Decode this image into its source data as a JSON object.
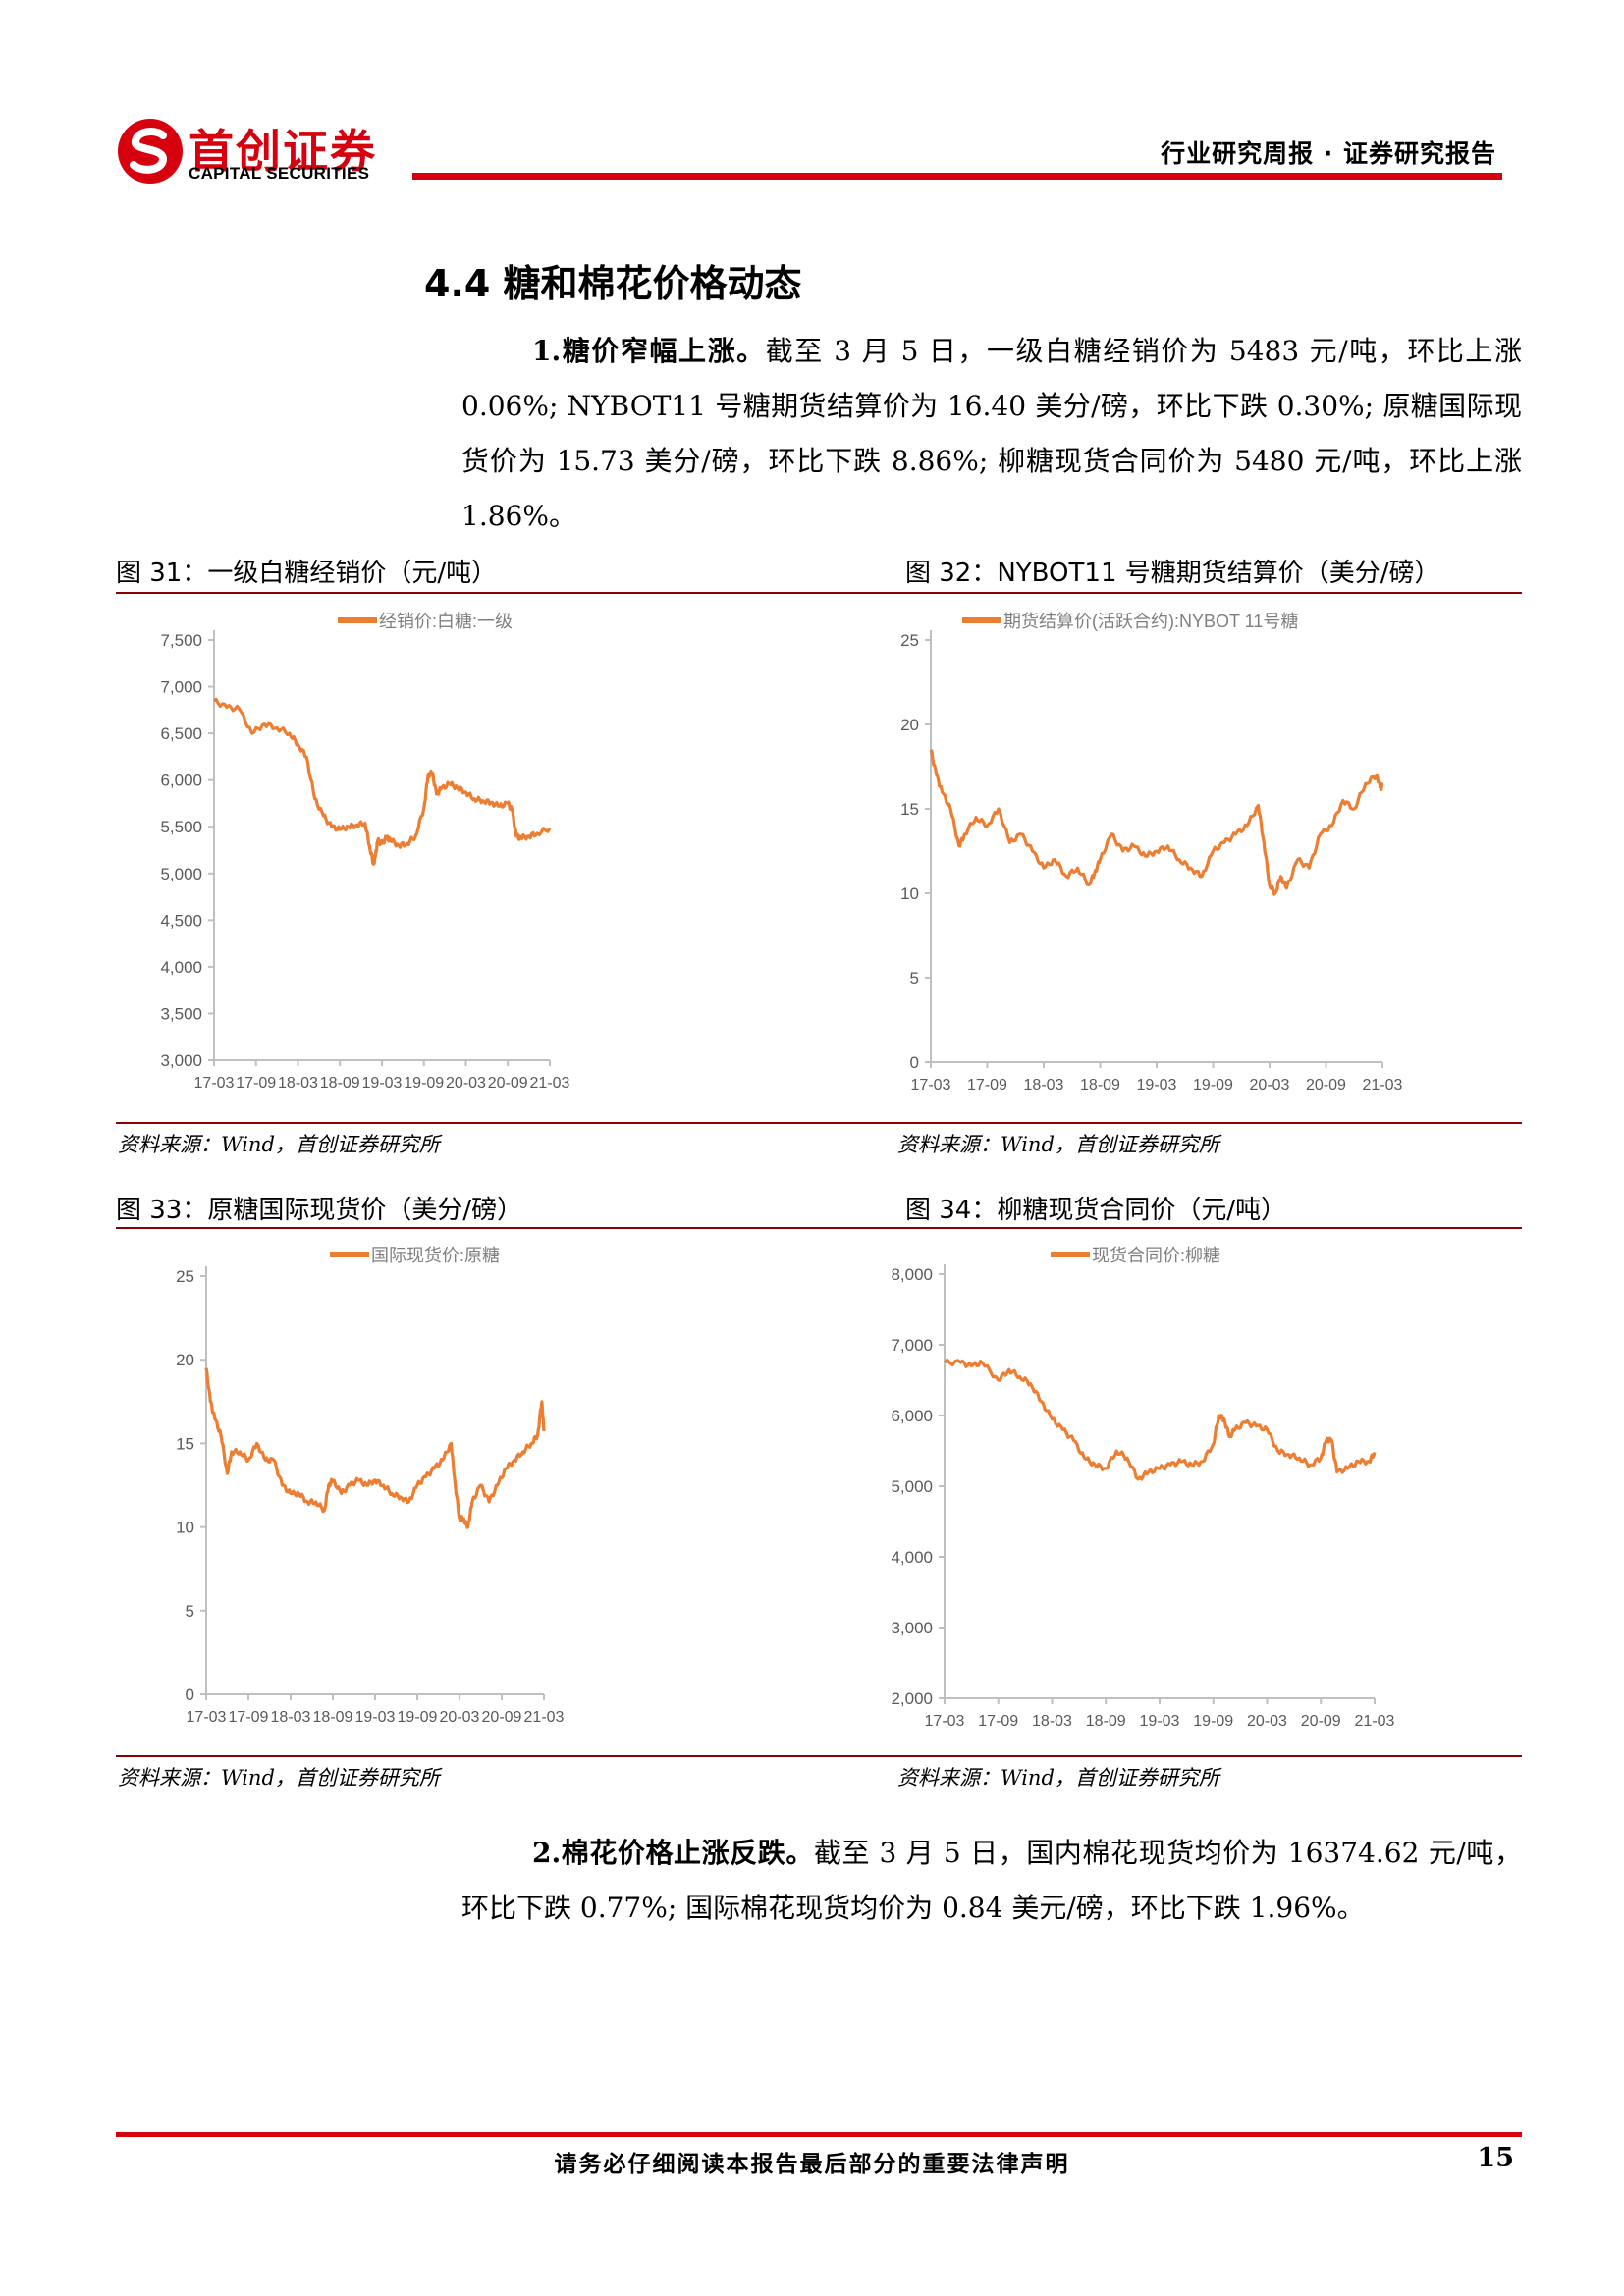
{
  "header": {
    "logo_cn": "首创证券",
    "logo_en": "CAPITAL SECURITIES",
    "report_type": "行业研究周报 · 证券研究报告"
  },
  "section": {
    "title": "4.4 糖和棉花价格动态",
    "para1_lead": "1.糖价窄幅上涨。",
    "para1_body": "截至 3 月 5 日，一级白糖经销价为 5483 元/吨，环比上涨 0.06%; NYBOT11 号糖期货结算价为 16.40 美分/磅，环比下跌 0.30%; 原糖国际现货价为 15.73 美分/磅，环比下跌 8.86%; 柳糖现货合同价为 5480 元/吨，环比上涨 1.86%。",
    "para2_lead": "2.棉花价格止涨反跌。",
    "para2_body": "截至 3 月 5 日，国内棉花现货均价为 16374.62 元/吨，环比下跌 0.77%; 国际棉花现货均价为 0.84 美元/磅，环比下跌 1.96%。"
  },
  "figures": [
    {
      "title": "图 31：一级白糖经销价（元/吨）",
      "source": "资料来源：Wind，首创证券研究所"
    },
    {
      "title": "图 32：NYBOT11 号糖期货结算价（美分/磅）",
      "source": "资料来源：Wind，首创证券研究所"
    },
    {
      "title": "图 33：原糖国际现货价（美分/磅）",
      "source": "资料来源：Wind，首创证券研究所"
    },
    {
      "title": "图 34：柳糖现货合同价（元/吨）",
      "source": "资料来源：Wind，首创证券研究所"
    }
  ],
  "chart_data": [
    {
      "type": "line",
      "legend": "经销价:白糖:一级",
      "color": "#ed7d31",
      "x_ticks": [
        "17-03",
        "17-09",
        "18-03",
        "18-09",
        "19-03",
        "19-09",
        "20-03",
        "20-09",
        "21-03"
      ],
      "y_ticks": [
        "7,500",
        "7,000",
        "6,500",
        "6,000",
        "5,500",
        "5,000",
        "4,500",
        "4,000",
        "3,500",
        "3,000"
      ],
      "ylim": [
        3000,
        7500
      ],
      "x": [
        0,
        0.3,
        0.6,
        0.9,
        1.2,
        1.5,
        1.8,
        2.0,
        2.2,
        2.4,
        2.6,
        2.8,
        3.0,
        3.2,
        3.4,
        3.6,
        3.7,
        3.8,
        3.85,
        3.9,
        4.0,
        4.1,
        4.2,
        4.4,
        4.6,
        4.8,
        5.0,
        5.1,
        5.2,
        5.3,
        5.4,
        5.6,
        5.8,
        6.0,
        6.2,
        6.4,
        6.6,
        6.8,
        7.0,
        7.1,
        7.2,
        7.3,
        7.5,
        7.7,
        8.0
      ],
      "values": [
        6850,
        6780,
        6760,
        6500,
        6600,
        6560,
        6500,
        6380,
        6250,
        5800,
        5620,
        5500,
        5470,
        5500,
        5520,
        5540,
        5300,
        5100,
        5200,
        5350,
        5320,
        5380,
        5360,
        5300,
        5320,
        5400,
        5700,
        6050,
        6080,
        5850,
        5900,
        5960,
        5920,
        5870,
        5800,
        5780,
        5760,
        5720,
        5750,
        5680,
        5400,
        5380,
        5400,
        5430,
        5483
      ]
    },
    {
      "type": "line",
      "legend": "期货结算价(活跃合约):NYBOT 11号糖",
      "color": "#ed7d31",
      "x_ticks": [
        "17-03",
        "17-09",
        "18-03",
        "18-09",
        "19-03",
        "19-09",
        "20-03",
        "20-09",
        "21-03"
      ],
      "y_ticks": [
        "25",
        "20",
        "15",
        "10",
        "5",
        "0"
      ],
      "ylim": [
        0,
        25
      ],
      "x": [
        0,
        0.1,
        0.2,
        0.35,
        0.5,
        0.6,
        0.8,
        1.0,
        1.2,
        1.4,
        1.6,
        1.8,
        2.0,
        2.2,
        2.4,
        2.6,
        2.8,
        2.9,
        3.0,
        3.2,
        3.4,
        3.6,
        3.8,
        4.0,
        4.2,
        4.4,
        4.6,
        4.8,
        5.0,
        5.2,
        5.4,
        5.6,
        5.8,
        5.9,
        6.0,
        6.1,
        6.2,
        6.3,
        6.5,
        6.7,
        6.9,
        7.1,
        7.3,
        7.5,
        7.7,
        7.9,
        7.97,
        8.0
      ],
      "values": [
        18.5,
        17,
        16,
        15,
        12.8,
        13.5,
        14.5,
        14,
        15,
        13,
        13.5,
        12.5,
        11.5,
        12,
        11,
        11.5,
        10.5,
        11.2,
        12,
        13.5,
        12.5,
        12.8,
        12.2,
        12.5,
        12.8,
        12,
        11.5,
        11,
        12.5,
        13,
        13.5,
        14,
        15.2,
        13,
        10.5,
        10,
        11,
        10.3,
        12,
        11.5,
        13.5,
        14,
        15.5,
        15,
        16.5,
        17,
        16.2,
        16.4
      ]
    },
    {
      "type": "line",
      "legend": "国际现货价:原糖",
      "color": "#ed7d31",
      "x_ticks": [
        "17-03",
        "17-09",
        "18-03",
        "18-09",
        "19-03",
        "19-09",
        "20-03",
        "20-09",
        "21-03"
      ],
      "y_ticks": [
        "25",
        "20",
        "15",
        "10",
        "5",
        "0"
      ],
      "ylim": [
        0,
        25
      ],
      "x": [
        0,
        0.1,
        0.2,
        0.35,
        0.5,
        0.6,
        0.8,
        1.0,
        1.2,
        1.4,
        1.6,
        1.8,
        2.0,
        2.2,
        2.4,
        2.6,
        2.8,
        2.9,
        3.0,
        3.2,
        3.4,
        3.6,
        3.8,
        4.0,
        4.2,
        4.4,
        4.6,
        4.8,
        5.0,
        5.2,
        5.4,
        5.6,
        5.8,
        5.9,
        6.0,
        6.1,
        6.2,
        6.3,
        6.5,
        6.7,
        6.9,
        7.1,
        7.3,
        7.5,
        7.7,
        7.85,
        7.95,
        8.0
      ],
      "values": [
        19.5,
        17.5,
        16.5,
        15.5,
        13.2,
        14.5,
        14.5,
        14,
        15,
        14,
        14,
        12.5,
        12,
        12,
        11.5,
        11.5,
        11,
        12.5,
        12.8,
        12,
        12.5,
        12.8,
        12.5,
        12.8,
        12.5,
        12,
        11.8,
        11.5,
        12.5,
        13,
        13.5,
        14,
        15,
        12.5,
        10.5,
        10.5,
        10,
        11.5,
        12.5,
        11.5,
        12.5,
        13.5,
        14,
        14.5,
        15,
        15.5,
        17.5,
        15.73
      ]
    },
    {
      "type": "line",
      "legend": "现货合同价:柳糖",
      "color": "#ed7d31",
      "x_ticks": [
        "17-03",
        "17-09",
        "18-03",
        "18-09",
        "19-03",
        "19-09",
        "20-03",
        "20-09",
        "21-03"
      ],
      "y_ticks": [
        "8,000",
        "7,000",
        "6,000",
        "5,000",
        "4,000",
        "3,000",
        "2,000"
      ],
      "ylim": [
        2000,
        8000
      ],
      "x": [
        0,
        0.3,
        0.5,
        0.7,
        1.0,
        1.2,
        1.4,
        1.6,
        1.8,
        2.0,
        2.2,
        2.4,
        2.6,
        2.8,
        3.0,
        3.2,
        3.4,
        3.6,
        3.8,
        4.0,
        4.2,
        4.4,
        4.6,
        4.8,
        5.0,
        5.1,
        5.2,
        5.3,
        5.4,
        5.6,
        5.8,
        6.0,
        6.2,
        6.4,
        6.6,
        6.8,
        7.0,
        7.1,
        7.2,
        7.3,
        7.5,
        7.7,
        7.9,
        8.0
      ],
      "values": [
        6750,
        6750,
        6700,
        6750,
        6500,
        6650,
        6550,
        6450,
        6200,
        5950,
        5800,
        5650,
        5400,
        5300,
        5250,
        5500,
        5400,
        5100,
        5200,
        5250,
        5300,
        5350,
        5300,
        5350,
        5600,
        6000,
        5950,
        5700,
        5800,
        5900,
        5850,
        5800,
        5500,
        5450,
        5400,
        5300,
        5400,
        5650,
        5650,
        5200,
        5250,
        5350,
        5350,
        5480
      ]
    }
  ],
  "footer": {
    "disclaimer": "请务必仔细阅读本报告最后部分的重要法律声明",
    "page_number": "15"
  }
}
